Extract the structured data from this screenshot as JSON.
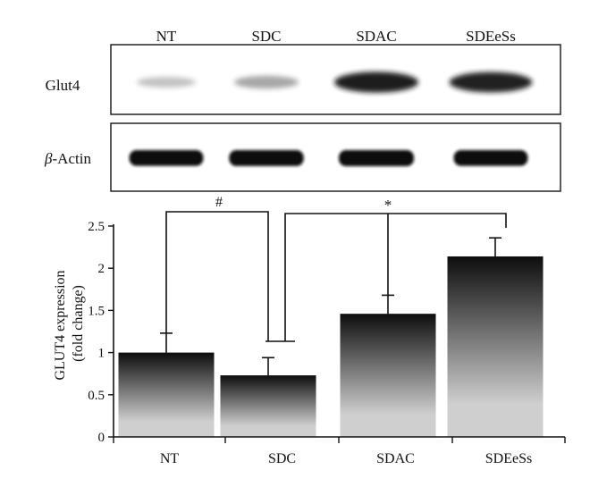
{
  "blot": {
    "lanes": [
      "NT",
      "SDC",
      "SDAC",
      "SDEeSs"
    ],
    "rows": [
      {
        "label": "Glut4",
        "intensity": [
          0.25,
          0.4,
          0.95,
          0.92
        ]
      },
      {
        "label_prefix": "β",
        "label_suffix": "-Actin",
        "intensity": [
          0.9,
          0.95,
          1.0,
          0.9
        ]
      }
    ]
  },
  "chart_data": {
    "type": "bar",
    "categories": [
      "NT",
      "SDC",
      "SDAC",
      "SDEeSs"
    ],
    "values": [
      1.0,
      0.73,
      1.46,
      2.14
    ],
    "errors": [
      0.23,
      0.21,
      0.22,
      0.22
    ],
    "ylabel_line1": "GLUT4 expression",
    "ylabel_line2": "(fold change)",
    "ylim": [
      0,
      2.5
    ],
    "yticks": [
      0,
      0.5,
      1,
      1.5,
      2,
      2.5
    ],
    "ytick_labels": [
      "0",
      "0.5",
      "1",
      "1.5",
      "2",
      "2.5"
    ],
    "annotations": [
      {
        "symbol": "#",
        "from": "NT",
        "to": "SDC"
      },
      {
        "symbol": "*",
        "from": "SDC",
        "to": [
          "SDAC",
          "SDEeSs"
        ]
      }
    ],
    "grid": false,
    "bar_gradient": [
      "#0d0d0d",
      "#cfcfcf"
    ]
  }
}
